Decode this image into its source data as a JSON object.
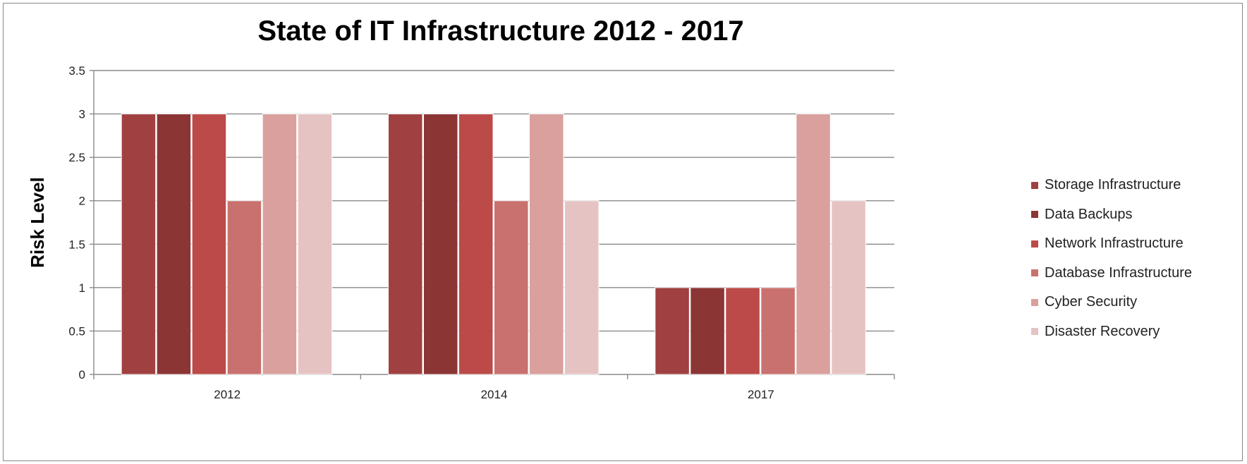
{
  "chart_data": {
    "type": "bar",
    "title": "State of IT Infrastructure 2012 - 2017",
    "xlabel": "",
    "ylabel": "Risk Level",
    "ylim": [
      0,
      3.5
    ],
    "yticks": [
      "0",
      "0.5",
      "1",
      "1.5",
      "2",
      "2.5",
      "3",
      "3.5"
    ],
    "categories": [
      "2012",
      "2014",
      "2017"
    ],
    "grid": true,
    "legend_position": "right",
    "series": [
      {
        "name": "Storage Infrastructure",
        "color": "#A04040",
        "values": [
          3,
          3,
          1
        ]
      },
      {
        "name": "Data Backups",
        "color": "#8C3535",
        "values": [
          3,
          3,
          1
        ]
      },
      {
        "name": "Network Infrastructure",
        "color": "#BC4A48",
        "values": [
          3,
          3,
          1
        ]
      },
      {
        "name": "Database Infrastructure",
        "color": "#C9716E",
        "values": [
          2,
          2,
          1
        ]
      },
      {
        "name": "Cyber Security",
        "color": "#D9A09E",
        "values": [
          3,
          3,
          3
        ]
      },
      {
        "name": "Disaster Recovery",
        "color": "#E6C3C3",
        "values": [
          3,
          2,
          2
        ]
      }
    ]
  }
}
